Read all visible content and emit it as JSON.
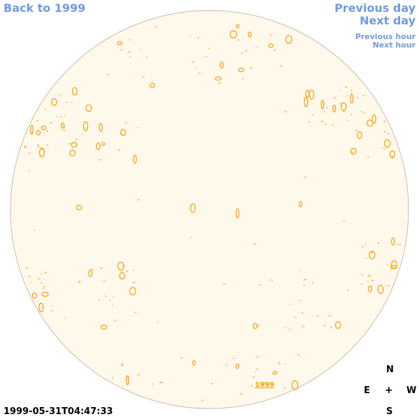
{
  "nav": {
    "back": "Back to 1999",
    "previous_day": "Previous day",
    "next_day": "Next day",
    "previous_hour": "Previous hour",
    "next_hour": "Next hour"
  },
  "compass": {
    "north": "N",
    "east": "E",
    "center": "+",
    "west": "W",
    "south": "S"
  },
  "timestamp": "1999-05-31T04:47:33",
  "year_label": "1999",
  "colors": {
    "link": "#6f9be0",
    "disk_fill": "#fff9ec",
    "disk_edge": "#c8bca6",
    "contour": "#ff9900"
  }
}
